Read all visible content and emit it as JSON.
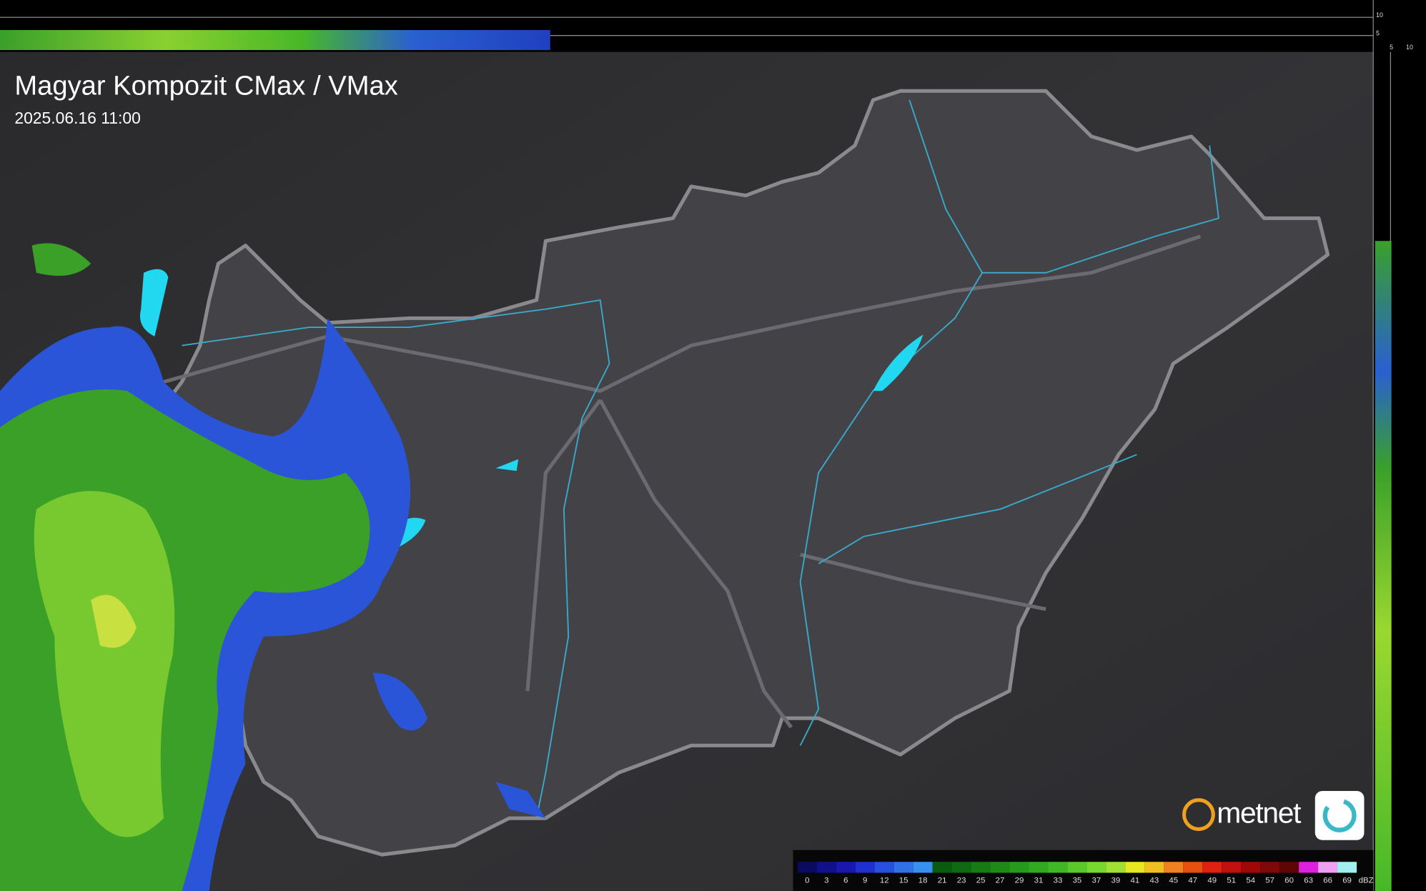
{
  "header": {
    "title": "Magyar Kompozit CMax / VMax",
    "timestamp": "2025.06.16 11:00"
  },
  "profile": {
    "top_ticks": [
      "10",
      "5"
    ],
    "side_ticks": [
      "5",
      "10"
    ]
  },
  "legend": {
    "labels": [
      "0",
      "3",
      "6",
      "9",
      "12",
      "15",
      "18",
      "21",
      "23",
      "25",
      "27",
      "29",
      "31",
      "33",
      "35",
      "37",
      "39",
      "41",
      "43",
      "45",
      "47",
      "49",
      "51",
      "54",
      "57",
      "60",
      "63",
      "66",
      "69"
    ],
    "unit": "dBZ",
    "colors": [
      "#0a0a60",
      "#10108a",
      "#1818b0",
      "#2030d0",
      "#2850e0",
      "#3070e8",
      "#3890f0",
      "#0a5a10",
      "#0f6a12",
      "#167a15",
      "#1e8a18",
      "#269a1c",
      "#30aa20",
      "#40b825",
      "#58c82a",
      "#78d830",
      "#a0e035",
      "#e8e820",
      "#f0c020",
      "#f08020",
      "#e85010",
      "#e02010",
      "#c01010",
      "#a00808",
      "#800808",
      "#600505",
      "#e020e0",
      "#f0a0f0",
      "#a0f0f0"
    ]
  },
  "logo": {
    "text": "metnet"
  }
}
